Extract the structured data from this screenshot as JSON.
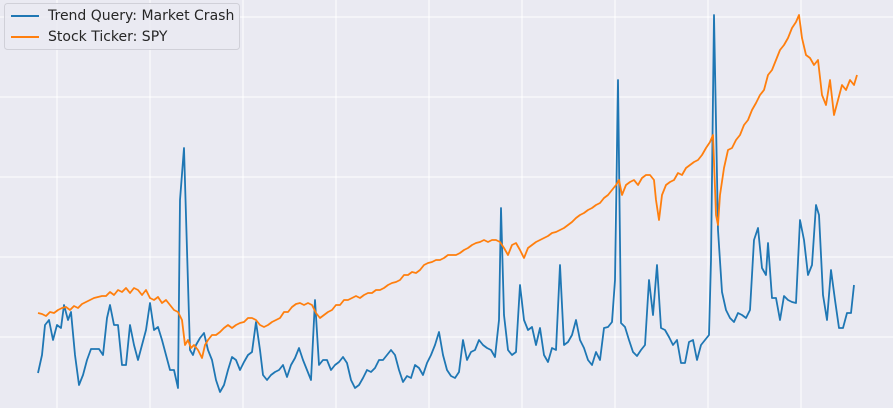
{
  "chart_data": {
    "type": "line",
    "xlim": [
      0,
      893
    ],
    "ylim": [
      0,
      408
    ],
    "xticks": [
      57,
      150,
      243,
      336,
      429,
      522,
      615,
      708,
      801
    ],
    "yticks": [
      71,
      151,
      231,
      311,
      391
    ],
    "grid": true,
    "legend": "upper left",
    "series": [
      {
        "name": "Trend Query: Market Crash",
        "color": "#1f77b4",
        "x": [
          38,
          42,
          45,
          49,
          53,
          57,
          61,
          64,
          68,
          71,
          75,
          79,
          83,
          87,
          91,
          95,
          99,
          103,
          107,
          110,
          114,
          118,
          122,
          126,
          130,
          134,
          138,
          142,
          146,
          150,
          154,
          158,
          162,
          166,
          170,
          174,
          178,
          180,
          184,
          187,
          190,
          193,
          196,
          200,
          204,
          208,
          212,
          216,
          220,
          224,
          228,
          232,
          236,
          240,
          244,
          248,
          252,
          256,
          260,
          263,
          267,
          271,
          275,
          279,
          283,
          287,
          291,
          295,
          299,
          303,
          307,
          311,
          315,
          319,
          323,
          327,
          331,
          335,
          339,
          343,
          347,
          351,
          355,
          359,
          363,
          367,
          371,
          375,
          379,
          383,
          387,
          391,
          395,
          399,
          403,
          407,
          411,
          415,
          419,
          423,
          427,
          431,
          435,
          439,
          443,
          447,
          451,
          455,
          459,
          463,
          467,
          471,
          475,
          479,
          483,
          487,
          491,
          495,
          499,
          501,
          504,
          508,
          512,
          516,
          520,
          524,
          528,
          532,
          536,
          540,
          544,
          548,
          552,
          556,
          560,
          564,
          568,
          572,
          576,
          580,
          584,
          588,
          592,
          596,
          600,
          604,
          608,
          612,
          615,
          618,
          621,
          625,
          629,
          633,
          637,
          641,
          645,
          649,
          653,
          657,
          661,
          665,
          669,
          673,
          677,
          681,
          685,
          689,
          693,
          697,
          701,
          705,
          709,
          711,
          714,
          718,
          722,
          726,
          730,
          734,
          738,
          742,
          746,
          750,
          754,
          758,
          762,
          766,
          768,
          772,
          776,
          780,
          784,
          788,
          792,
          796,
          800,
          804,
          808,
          812,
          816,
          819,
          823,
          827,
          831,
          835,
          839,
          843,
          847,
          851,
          854
        ],
        "values": [
          35,
          53,
          83,
          88,
          68,
          83,
          80,
          103,
          88,
          96,
          53,
          23,
          33,
          48,
          59,
          59,
          59,
          53,
          90,
          103,
          83,
          83,
          43,
          43,
          83,
          63,
          48,
          63,
          78,
          105,
          78,
          81,
          68,
          53,
          38,
          38,
          20,
          208,
          260,
          158,
          58,
          53,
          63,
          70,
          75,
          58,
          48,
          28,
          16,
          23,
          38,
          51,
          48,
          38,
          46,
          53,
          56,
          86,
          58,
          33,
          28,
          33,
          36,
          38,
          43,
          31,
          43,
          50,
          60,
          48,
          38,
          28,
          108,
          43,
          48,
          48,
          38,
          43,
          46,
          51,
          45,
          28,
          20,
          23,
          30,
          38,
          36,
          40,
          48,
          48,
          53,
          58,
          53,
          38,
          26,
          32,
          30,
          43,
          40,
          33,
          45,
          53,
          63,
          76,
          53,
          38,
          32,
          30,
          36,
          68,
          48,
          56,
          58,
          68,
          63,
          60,
          58,
          51,
          88,
          200,
          93,
          58,
          53,
          56,
          123,
          88,
          78,
          81,
          63,
          80,
          53,
          46,
          60,
          58,
          143,
          63,
          66,
          73,
          88,
          68,
          60,
          48,
          43,
          56,
          48,
          80,
          81,
          86,
          128,
          328,
          85,
          81,
          68,
          56,
          52,
          58,
          63,
          128,
          93,
          143,
          80,
          78,
          71,
          63,
          68,
          45,
          45,
          66,
          68,
          48,
          63,
          68,
          73,
          148,
          393,
          178,
          116,
          98,
          90,
          86,
          95,
          93,
          90,
          98,
          168,
          180,
          140,
          133,
          165,
          110,
          110,
          88,
          112,
          108,
          106,
          105,
          188,
          168,
          133,
          143,
          203,
          193,
          113,
          88,
          138,
          108,
          80,
          80,
          95,
          95,
          123
        ]
      },
      {
        "name": "Stock Ticker: SPY",
        "color": "#ff7f0e",
        "x": [
          38,
          42,
          46,
          50,
          54,
          58,
          62,
          66,
          70,
          74,
          78,
          82,
          86,
          90,
          94,
          98,
          102,
          106,
          110,
          114,
          118,
          122,
          126,
          130,
          134,
          138,
          142,
          146,
          150,
          154,
          158,
          162,
          166,
          170,
          174,
          178,
          182,
          185,
          188,
          191,
          194,
          198,
          202,
          205,
          208,
          212,
          216,
          220,
          224,
          228,
          232,
          236,
          240,
          244,
          248,
          252,
          256,
          260,
          264,
          268,
          272,
          276,
          280,
          284,
          288,
          292,
          296,
          300,
          304,
          308,
          312,
          316,
          320,
          324,
          328,
          332,
          336,
          340,
          344,
          348,
          352,
          356,
          360,
          364,
          368,
          372,
          376,
          380,
          384,
          388,
          392,
          396,
          400,
          404,
          408,
          412,
          416,
          420,
          424,
          428,
          432,
          436,
          440,
          444,
          448,
          452,
          456,
          460,
          464,
          468,
          472,
          476,
          480,
          484,
          488,
          492,
          496,
          500,
          504,
          508,
          512,
          516,
          520,
          524,
          528,
          532,
          536,
          540,
          544,
          548,
          552,
          556,
          560,
          564,
          568,
          572,
          576,
          580,
          584,
          588,
          592,
          596,
          600,
          604,
          608,
          612,
          616,
          619,
          622,
          626,
          630,
          634,
          638,
          642,
          646,
          650,
          654,
          656,
          659,
          662,
          666,
          670,
          674,
          678,
          682,
          686,
          690,
          694,
          698,
          702,
          706,
          710,
          713,
          716,
          718,
          720,
          724,
          728,
          732,
          736,
          740,
          744,
          748,
          752,
          756,
          760,
          764,
          768,
          772,
          776,
          780,
          784,
          788,
          792,
          796,
          799,
          802,
          806,
          810,
          814,
          818,
          822,
          826,
          830,
          834,
          838,
          842,
          846,
          850,
          854,
          857
        ],
        "values": [
          95,
          94,
          92,
          96,
          95,
          98,
          100,
          101,
          98,
          102,
          100,
          104,
          106,
          108,
          110,
          111,
          112,
          112,
          116,
          113,
          118,
          116,
          120,
          115,
          120,
          118,
          113,
          118,
          110,
          108,
          111,
          105,
          108,
          103,
          98,
          96,
          88,
          63,
          68,
          60,
          63,
          58,
          50,
          63,
          68,
          73,
          73,
          76,
          80,
          83,
          80,
          83,
          85,
          86,
          90,
          90,
          88,
          83,
          81,
          83,
          86,
          88,
          90,
          96,
          96,
          101,
          104,
          105,
          103,
          105,
          103,
          95,
          90,
          93,
          96,
          98,
          103,
          103,
          108,
          108,
          110,
          112,
          110,
          113,
          115,
          115,
          118,
          118,
          120,
          123,
          125,
          126,
          128,
          133,
          133,
          136,
          135,
          138,
          143,
          145,
          146,
          148,
          148,
          150,
          153,
          153,
          153,
          155,
          158,
          160,
          163,
          165,
          166,
          168,
          166,
          168,
          168,
          166,
          160,
          153,
          163,
          165,
          158,
          150,
          160,
          163,
          166,
          168,
          170,
          172,
          175,
          176,
          178,
          180,
          183,
          186,
          190,
          193,
          195,
          198,
          200,
          203,
          205,
          210,
          213,
          218,
          223,
          228,
          213,
          223,
          226,
          228,
          223,
          230,
          233,
          233,
          228,
          208,
          188,
          213,
          223,
          226,
          228,
          235,
          233,
          240,
          243,
          246,
          248,
          253,
          260,
          266,
          273,
          193,
          183,
          213,
          240,
          258,
          260,
          268,
          273,
          283,
          288,
          298,
          305,
          313,
          318,
          333,
          338,
          348,
          358,
          363,
          370,
          380,
          386,
          393,
          370,
          353,
          350,
          343,
          348,
          313,
          303,
          328,
          293,
          308,
          323,
          318,
          328,
          323,
          333
        ]
      }
    ]
  }
}
